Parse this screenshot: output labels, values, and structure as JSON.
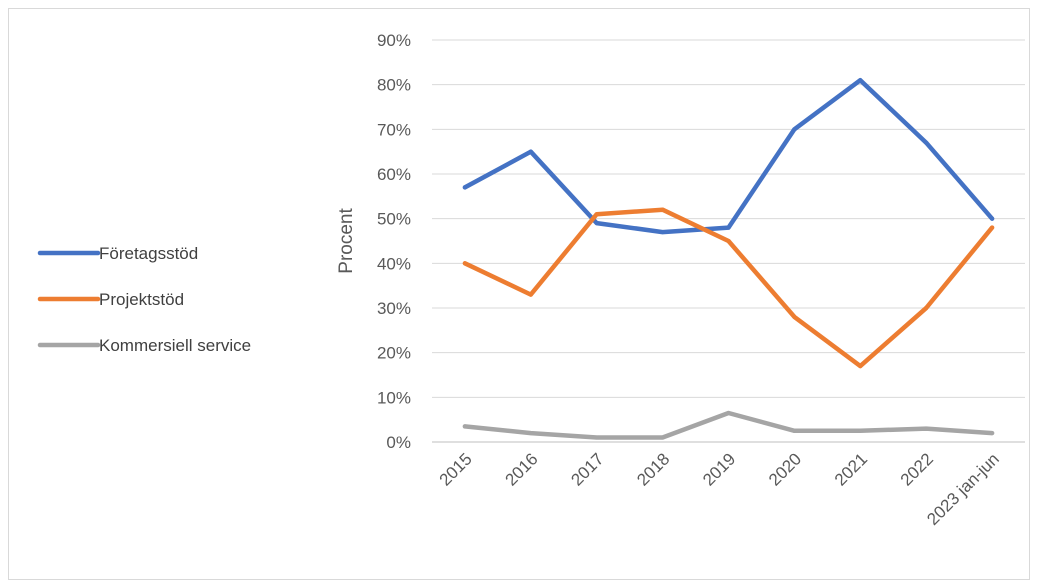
{
  "chart_data": {
    "type": "line",
    "title": "",
    "xlabel": "",
    "ylabel": "Procent",
    "ylim": [
      0,
      90
    ],
    "y_tick_step": 10,
    "y_tick_suffix": "%",
    "grid": true,
    "legend_position": "left",
    "categories": [
      "2015",
      "2016",
      "2017",
      "2018",
      "2019",
      "2020",
      "2021",
      "2022",
      "2023 jan-jun"
    ],
    "series": [
      {
        "name": "Företagsstöd",
        "color": "#4472C4",
        "values": [
          57,
          65,
          49,
          47,
          48,
          70,
          81,
          67,
          50
        ]
      },
      {
        "name": "Projektstöd",
        "color": "#ED7D31",
        "values": [
          40,
          33,
          51,
          52,
          45,
          28,
          17,
          30,
          48
        ]
      },
      {
        "name": "Kommersiell service",
        "color": "#A5A5A5",
        "values": [
          3.5,
          2,
          1,
          1,
          6.5,
          2.5,
          2.5,
          3,
          2
        ]
      }
    ]
  }
}
